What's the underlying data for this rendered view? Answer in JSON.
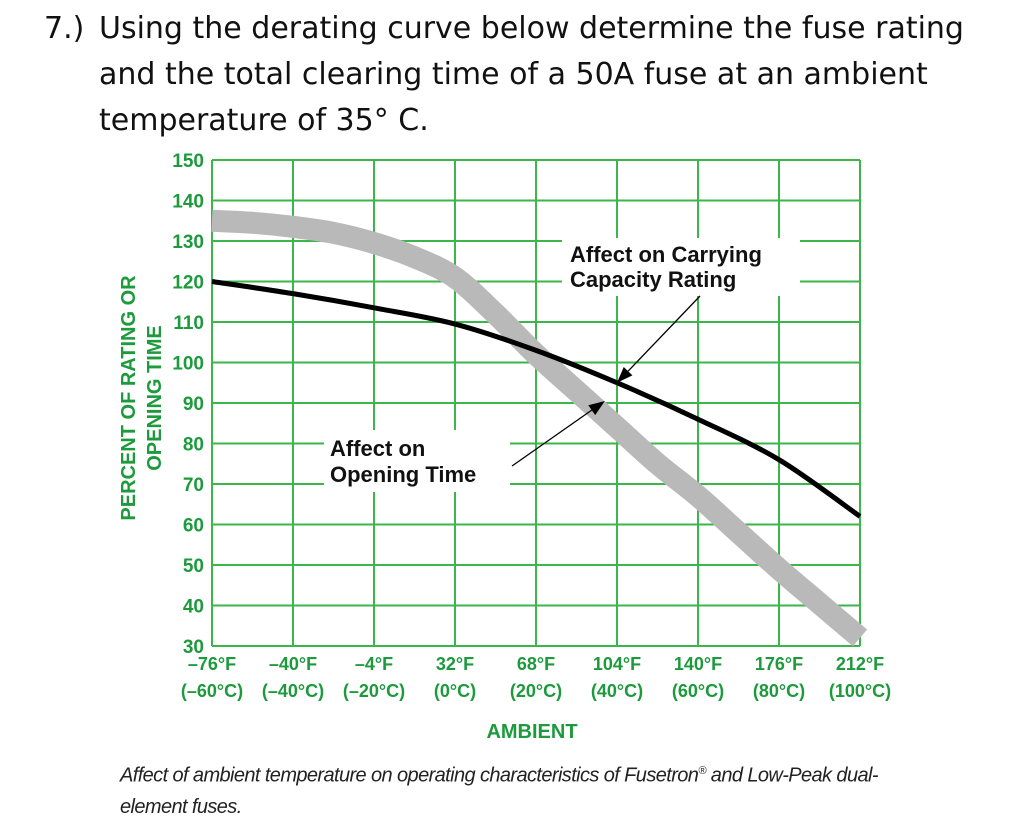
{
  "question": {
    "number": "7.)",
    "text": "Using the derating curve below determine the fuse rating and the total clearing time of a 50A fuse at an ambient temperature of 35° C."
  },
  "caption": {
    "part1": "Affect of ambient temperature on operating characteristics of Fusetron",
    "mark": "®",
    "part2": " and Low-Peak dual-element fuses."
  },
  "chart_data": {
    "type": "line",
    "title": "",
    "xlabel": "AMBIENT",
    "ylabel_line1": "PERCENT OF RATING OR",
    "ylabel_line2": "OPENING TIME",
    "x_unit": "°C",
    "xlim": [
      -60,
      100
    ],
    "ylim": [
      30,
      150
    ],
    "y_ticks": [
      30,
      40,
      50,
      60,
      70,
      80,
      90,
      100,
      110,
      120,
      130,
      140,
      150
    ],
    "x_ticks": [
      {
        "value": -60,
        "f": "–76°F",
        "c": "(–60°C)"
      },
      {
        "value": -40,
        "f": "–40°F",
        "c": "(–40°C)"
      },
      {
        "value": -20,
        "f": "–4°F",
        "c": "(–20°C)"
      },
      {
        "value": 0,
        "f": "32°F",
        "c": "(0°C)"
      },
      {
        "value": 20,
        "f": "68°F",
        "c": "(20°C)"
      },
      {
        "value": 40,
        "f": "104°F",
        "c": "(40°C)"
      },
      {
        "value": 60,
        "f": "140°F",
        "c": "(60°C)"
      },
      {
        "value": 80,
        "f": "176°F",
        "c": "(80°C)"
      },
      {
        "value": 100,
        "f": "212°F",
        "c": "(100°C)"
      }
    ],
    "grid": true,
    "colors": {
      "grid": "#3cb64a",
      "axis_text": "#1c9a3c",
      "carrying": "#000000",
      "opening": "#b9b9b9"
    },
    "series": [
      {
        "key": "carrying",
        "x": [
          -60,
          -40,
          -20,
          0,
          20,
          40,
          60,
          80,
          100
        ],
        "y": [
          120,
          117,
          113.5,
          109.5,
          103,
          95,
          86,
          76,
          62
        ]
      },
      {
        "key": "opening",
        "x": [
          -60,
          -50,
          -40,
          -30,
          -20,
          -10,
          0,
          10,
          20,
          30,
          40,
          50,
          60,
          70,
          80,
          90,
          100
        ],
        "y": [
          135,
          134.5,
          133.5,
          132,
          129.5,
          126,
          121,
          112,
          102,
          93,
          84,
          75,
          67,
          58,
          49,
          40.5,
          32
        ]
      }
    ],
    "annotations": [
      {
        "name": "carrying",
        "line1": "Affect on Carrying",
        "line2": "Capacity Rating",
        "arrow_to": [
          40,
          95
        ]
      },
      {
        "name": "opening",
        "line1": "Affect on",
        "line2": "Opening Time",
        "arrow_to": [
          37,
          90.5
        ]
      }
    ]
  }
}
